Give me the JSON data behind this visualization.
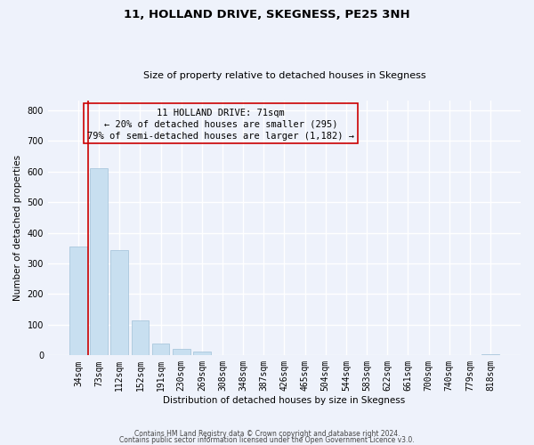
{
  "title1": "11, HOLLAND DRIVE, SKEGNESS, PE25 3NH",
  "title2": "Size of property relative to detached houses in Skegness",
  "xlabel": "Distribution of detached houses by size in Skegness",
  "ylabel": "Number of detached properties",
  "bar_labels": [
    "34sqm",
    "73sqm",
    "112sqm",
    "152sqm",
    "191sqm",
    "230sqm",
    "269sqm",
    "308sqm",
    "348sqm",
    "387sqm",
    "426sqm",
    "465sqm",
    "504sqm",
    "544sqm",
    "583sqm",
    "622sqm",
    "661sqm",
    "700sqm",
    "740sqm",
    "779sqm",
    "818sqm"
  ],
  "bar_values": [
    355,
    612,
    343,
    113,
    40,
    22,
    13,
    0,
    0,
    0,
    0,
    0,
    0,
    0,
    0,
    0,
    0,
    0,
    0,
    0,
    5
  ],
  "bar_color": "#c8dff0",
  "bar_edge_color": "#a0c0d8",
  "annotation_line1": "11 HOLLAND DRIVE: 71sqm",
  "annotation_line2": "← 20% of detached houses are smaller (295)",
  "annotation_line3": "79% of semi-detached houses are larger (1,182) →",
  "red_line_bar_index": 1,
  "ylim": [
    0,
    830
  ],
  "yticks": [
    0,
    100,
    200,
    300,
    400,
    500,
    600,
    700,
    800
  ],
  "footer1": "Contains HM Land Registry data © Crown copyright and database right 2024.",
  "footer2": "Contains public sector information licensed under the Open Government Licence v3.0.",
  "background_color": "#eef2fb",
  "grid_color": "#ffffff",
  "box_edge_color": "#cc0000",
  "red_line_color": "#cc0000",
  "title1_fontsize": 9.5,
  "title2_fontsize": 8,
  "axis_label_fontsize": 7.5,
  "tick_fontsize": 7,
  "footer_fontsize": 5.5,
  "annot_fontsize": 7.5
}
